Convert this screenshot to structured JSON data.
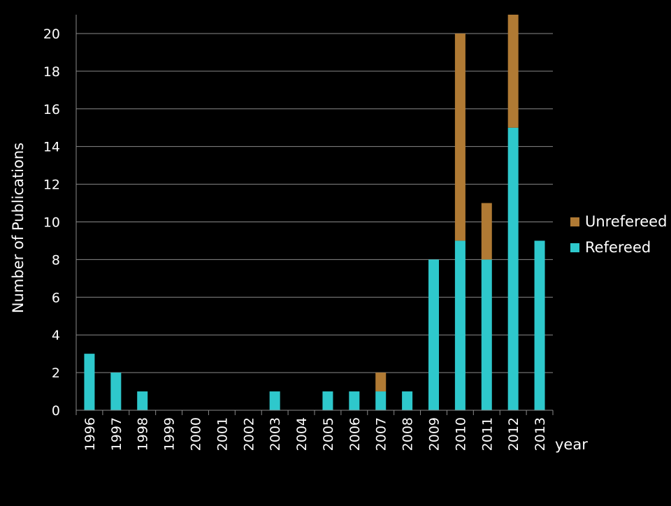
{
  "chart_data": {
    "type": "bar",
    "stacked": true,
    "categories": [
      "1996",
      "1997",
      "1998",
      "1999",
      "2000",
      "2001",
      "2002",
      "2003",
      "2004",
      "2005",
      "2006",
      "2007",
      "2008",
      "2009",
      "2010",
      "2011",
      "2012",
      "2013"
    ],
    "series": [
      {
        "name": "Refereed",
        "color": "#2ec8cc",
        "values": [
          3,
          2,
          1,
          0,
          0,
          0,
          0,
          1,
          0,
          1,
          1,
          1,
          1,
          8,
          9,
          8,
          15,
          9
        ]
      },
      {
        "name": "Unrefereed",
        "color": "#b07a34",
        "values": [
          0,
          0,
          0,
          0,
          0,
          0,
          0,
          0,
          0,
          0,
          0,
          1,
          0,
          0,
          11,
          3,
          6,
          0
        ]
      }
    ],
    "xlabel": "year",
    "ylabel": "Number of Publications",
    "ylim": [
      0,
      21
    ],
    "yticks": [
      0,
      2,
      4,
      6,
      8,
      10,
      12,
      14,
      16,
      18,
      20
    ],
    "grid": true,
    "legend_position": "right",
    "legend_order": [
      "Unrefereed",
      "Refereed"
    ]
  }
}
